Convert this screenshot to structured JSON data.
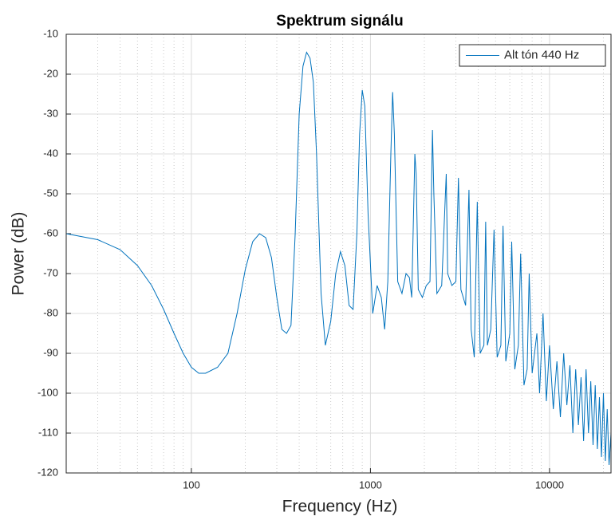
{
  "chart_data": {
    "type": "line",
    "title": "Spektrum signálu",
    "xlabel": "Frequency (Hz)",
    "ylabel": "Power (dB)",
    "xscale": "log",
    "grid": true,
    "minor_grid": true,
    "legend": "northeast",
    "xlim": [
      20,
      22050
    ],
    "ylim": [
      -120,
      -10
    ],
    "xticks": [
      100,
      1000,
      10000
    ],
    "yticks": [
      -120,
      -110,
      -100,
      -90,
      -80,
      -70,
      -60,
      -50,
      -40,
      -30,
      -20,
      -10
    ],
    "x": [
      20,
      30,
      40,
      50,
      60,
      70,
      80,
      90,
      100,
      110,
      120,
      140,
      160,
      180,
      200,
      220,
      240,
      260,
      280,
      300,
      320,
      340,
      360,
      380,
      400,
      420,
      440,
      460,
      480,
      500,
      530,
      560,
      600,
      640,
      680,
      720,
      760,
      800,
      840,
      870,
      900,
      930,
      970,
      1030,
      1090,
      1150,
      1200,
      1250,
      1300,
      1330,
      1360,
      1420,
      1500,
      1580,
      1650,
      1700,
      1770,
      1800,
      1850,
      1950,
      2050,
      2150,
      2220,
      2260,
      2350,
      2500,
      2650,
      2700,
      2850,
      3000,
      3100,
      3200,
      3400,
      3550,
      3650,
      3800,
      3950,
      4100,
      4300,
      4400,
      4500,
      4700,
      4900,
      5100,
      5350,
      5500,
      5700,
      6000,
      6150,
      6400,
      6700,
      6900,
      7200,
      7500,
      7700,
      8000,
      8500,
      8800,
      9200,
      9600,
      10000,
      10500,
      11000,
      11500,
      12000,
      12500,
      13000,
      13500,
      14000,
      14500,
      15000,
      15500,
      16000,
      16500,
      17000,
      17500,
      18000,
      18500,
      19000,
      19500,
      20000,
      20500,
      21000,
      21500,
      22050
    ],
    "series": [
      {
        "name": "Alt tón 440 Hz",
        "color": "#0072bd",
        "values": [
          -60,
          -61.5,
          -64,
          -68,
          -73,
          -79,
          -85,
          -90,
          -93.5,
          -95,
          -95,
          -93.5,
          -90,
          -80,
          -69,
          -62,
          -60,
          -61,
          -66,
          -76,
          -84,
          -85,
          -83,
          -60,
          -30,
          -18,
          -14.5,
          -16,
          -22,
          -40,
          -75,
          -88,
          -82,
          -70,
          -64.5,
          -68,
          -78,
          -79,
          -60,
          -35,
          -24,
          -28,
          -55,
          -80,
          -73,
          -76,
          -84,
          -72,
          -40,
          -24.5,
          -35,
          -72,
          -75,
          -70,
          -71,
          -76,
          -40,
          -45,
          -74,
          -76,
          -73,
          -72,
          -34,
          -50,
          -75,
          -73,
          -45,
          -70,
          -73,
          -72,
          -46,
          -74,
          -78,
          -49,
          -84,
          -91,
          -52,
          -90,
          -88,
          -57,
          -88,
          -84,
          -59,
          -91,
          -88,
          -58,
          -92,
          -85,
          -62,
          -94,
          -88,
          -65,
          -98,
          -94,
          -70,
          -95,
          -85,
          -100,
          -80,
          -102,
          -88,
          -104,
          -92,
          -106,
          -90,
          -103,
          -93,
          -110,
          -94,
          -108,
          -96,
          -112,
          -94,
          -110,
          -97,
          -113,
          -98,
          -114,
          -101,
          -116,
          -100,
          -117,
          -104,
          -118,
          -110
        ]
      }
    ]
  }
}
